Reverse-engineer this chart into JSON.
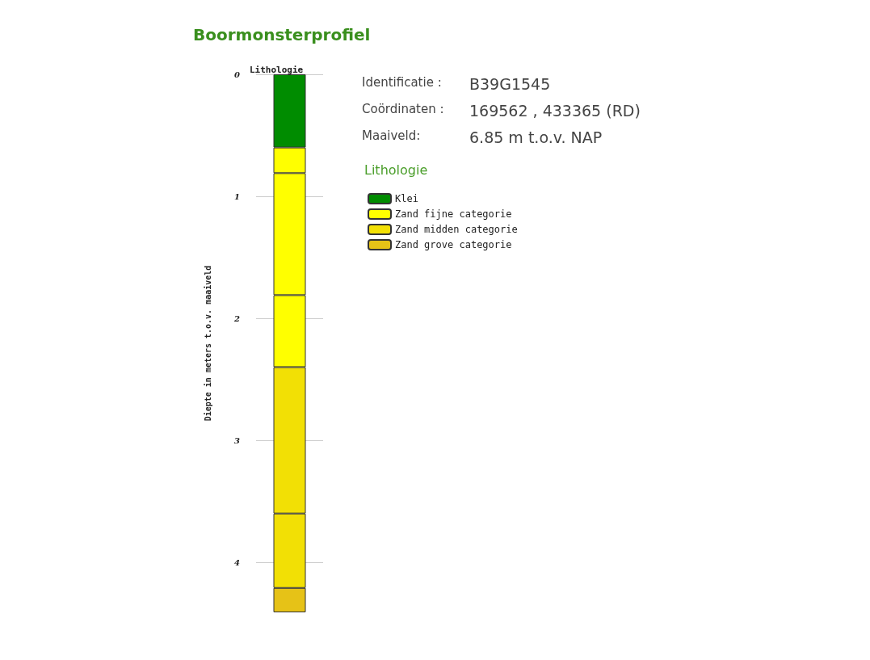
{
  "chart_data": {
    "type": "bar",
    "title": "Boormonsterprofiel",
    "xlabel": "Lithologie",
    "ylabel": "Diepte in meters t.o.v. maaiveld",
    "legend_title": "Lithologie",
    "categories": [
      null
    ],
    "stacked": true,
    "series": [
      {
        "name": "Klei",
        "color": "#008c00",
        "values": [
          0.6
        ]
      },
      {
        "name": "Zand fijne categorie",
        "color": "#ffff00",
        "values": [
          0.21
        ]
      },
      {
        "color": "#ffff00",
        "values": [
          1.0
        ]
      },
      {
        "color": "#ffff00",
        "values": [
          0.59
        ]
      },
      {
        "name": "Zand midden categorie",
        "color": "#f2e005",
        "values": [
          1.2
        ]
      },
      {
        "color": "#f2e005",
        "values": [
          0.61
        ]
      },
      {
        "name": "Zand grove categorie",
        "color": "#e6c217",
        "values": [
          0.2
        ]
      }
    ],
    "ylim": [
      4.41,
      0
    ],
    "yticks": [
      0,
      1,
      2,
      3,
      4
    ],
    "grid": "y",
    "legend": "right",
    "annotations": [
      "Identificatie :",
      "B39G1545",
      "Coördinaten :",
      "169562 , 433365 (RD)",
      "Maaiveld:",
      "6.85 m t.o.v. NAP"
    ]
  }
}
